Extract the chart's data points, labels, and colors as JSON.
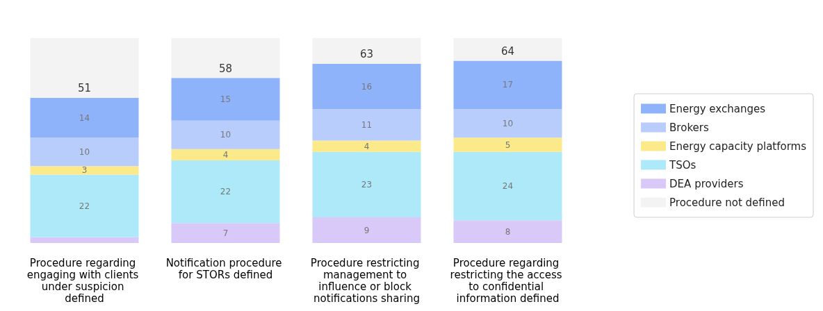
{
  "chart_data": {
    "type": "bar",
    "stacked": true,
    "categories": [
      "Procedure regarding engaging with clients under suspicion defined",
      "Notification procedure for STORs defined",
      "Procedure restricting management to influence or block notifications sharing",
      "Procedure regarding restricting the access to confidential information defined"
    ],
    "series": [
      {
        "name": "DEA providers",
        "color": "#d9c9f9",
        "values": [
          2,
          7,
          9,
          8
        ],
        "value_labels": [
          null,
          "7",
          "9",
          "8"
        ]
      },
      {
        "name": "TSOs",
        "color": "#aee9f9",
        "values": [
          22,
          22,
          23,
          24
        ],
        "value_labels": [
          "22",
          "22",
          "23",
          "24"
        ]
      },
      {
        "name": "Energy capacity platforms",
        "color": "#fbe98a",
        "values": [
          3,
          4,
          4,
          5
        ],
        "value_labels": [
          "3",
          "4",
          "4",
          "5"
        ]
      },
      {
        "name": "Brokers",
        "color": "#b8cdfb",
        "values": [
          10,
          10,
          11,
          10
        ],
        "value_labels": [
          "10",
          "10",
          "11",
          "10"
        ]
      },
      {
        "name": "Energy exchanges",
        "color": "#8fb3fb",
        "values": [
          14,
          15,
          16,
          17
        ],
        "value_labels": [
          "14",
          "15",
          "16",
          "17"
        ]
      },
      {
        "name": "Procedure not defined",
        "color": "#f3f3f3",
        "values": [
          21,
          14,
          9,
          8
        ]
      }
    ],
    "annotations": [
      {
        "text": "51",
        "x": "Procedure regarding engaging with clients under suspicion defined",
        "y": 51
      },
      {
        "text": "58",
        "x": "Notification procedure for STORs defined",
        "y": 58
      },
      {
        "text": "63",
        "x": "Procedure restricting management to influence or block notifications sharing",
        "y": 63
      },
      {
        "text": "64",
        "x": "Procedure regarding restricting the access to confidential information defined",
        "y": 64
      }
    ],
    "legend": "right",
    "grid": false
  }
}
